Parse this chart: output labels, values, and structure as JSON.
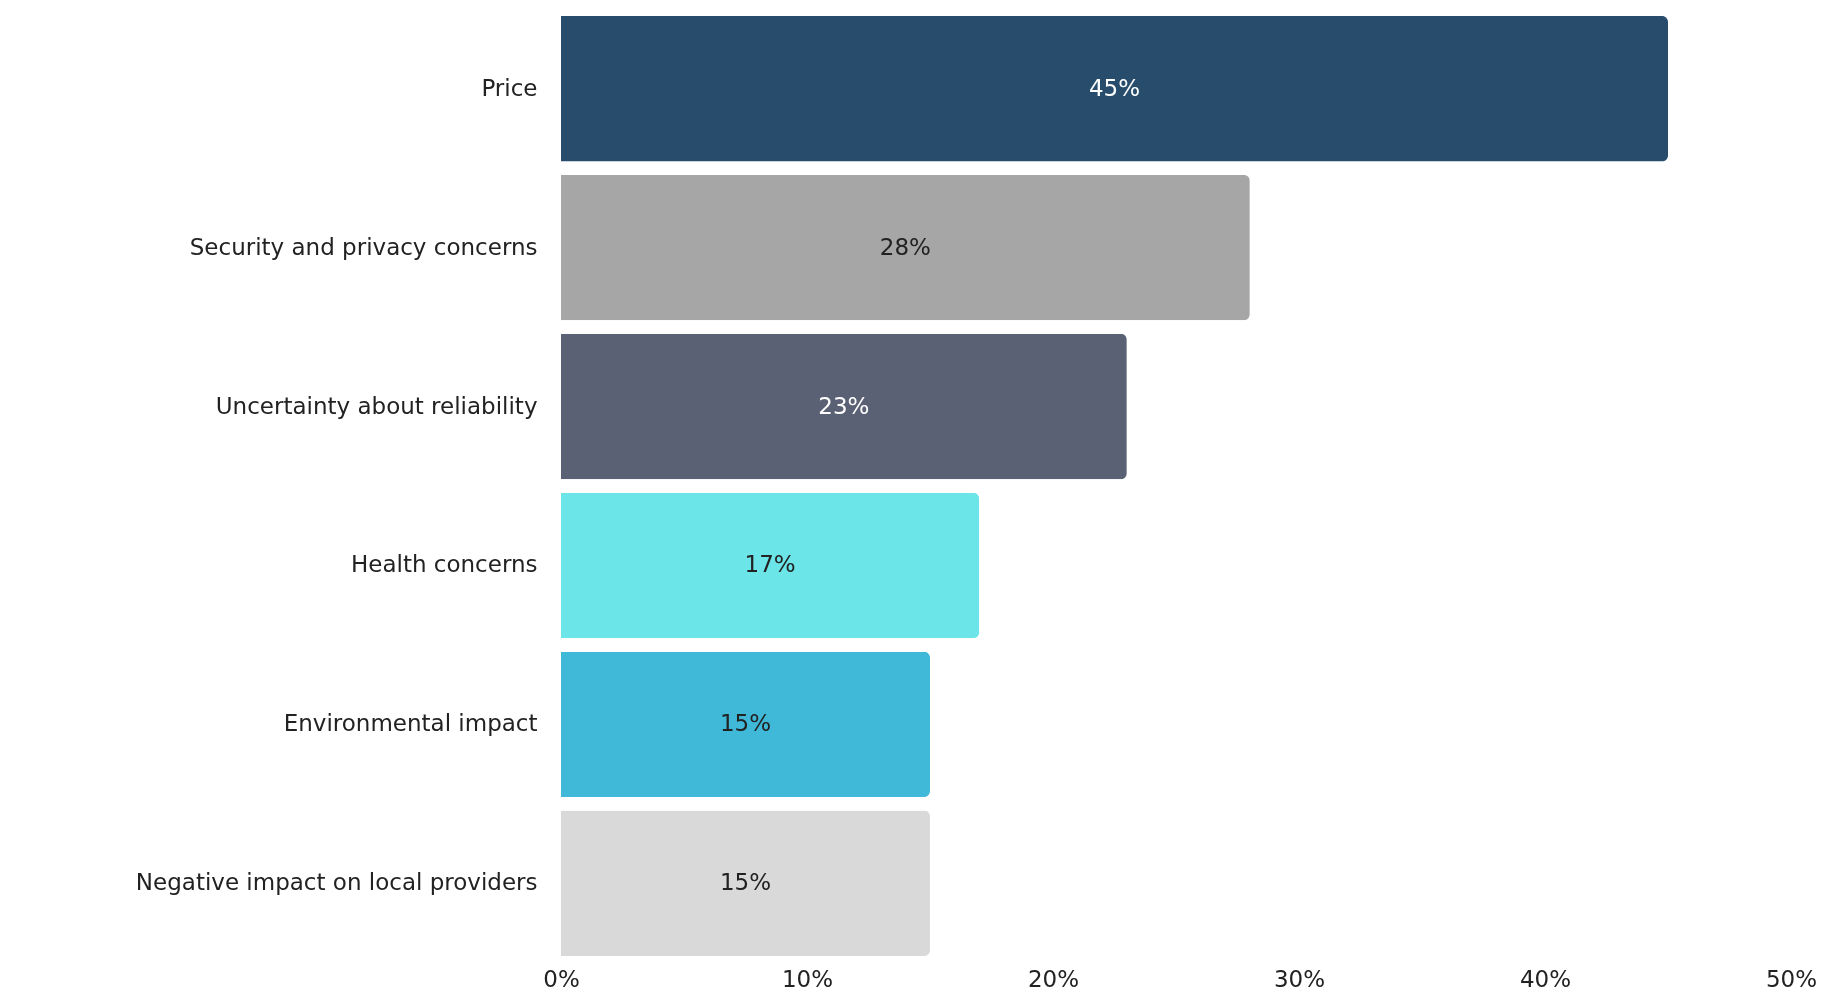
{
  "chart_data": {
    "type": "bar",
    "orientation": "horizontal",
    "categories": [
      "Price",
      "Security and privacy concerns",
      "Uncertainty about reliability",
      "Health concerns",
      "Environmental impact",
      "Negative impact on local providers"
    ],
    "values": [
      45,
      28,
      23,
      17,
      15,
      15
    ],
    "colors": [
      "#284c6c",
      "#a6a6a6",
      "#5a6175",
      "#6ce5e8",
      "#40b8d8",
      "#d9d9d9"
    ],
    "value_labels": [
      "45%",
      "28%",
      "23%",
      "17%",
      "15%",
      "15%"
    ],
    "xlim": [
      0,
      50
    ],
    "xticks": [
      {
        "value": 0,
        "label": "0%"
      },
      {
        "value": 10,
        "label": "10%"
      },
      {
        "value": 20,
        "label": "20%"
      },
      {
        "value": 30,
        "label": "30%"
      },
      {
        "value": 40,
        "label": "40%"
      },
      {
        "value": 50,
        "label": "50%"
      }
    ],
    "grid": false
  }
}
